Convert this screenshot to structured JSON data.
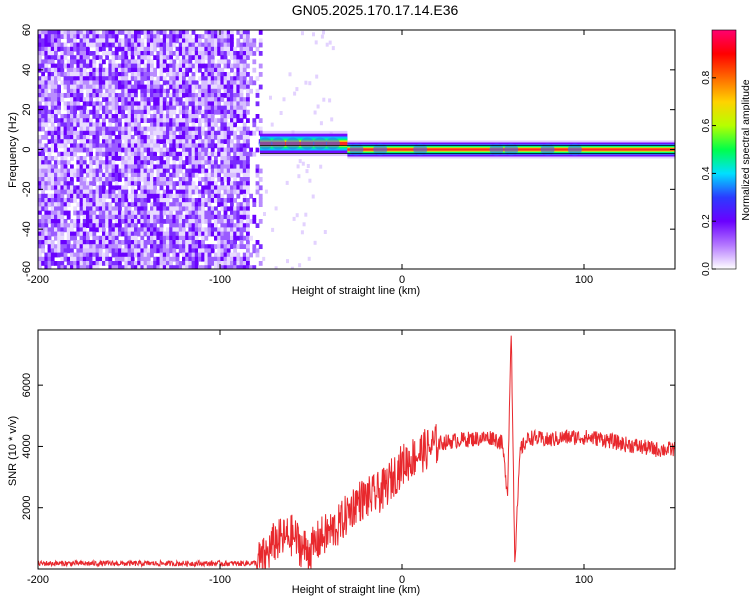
{
  "title": "GN05.2025.170.17.14.E36",
  "chart_data": [
    {
      "type": "heatmap",
      "xlabel": "Height of straight line (km)",
      "ylabel": "Frequency (Hz)",
      "xlim": [
        -200,
        150
      ],
      "ylim": [
        -60,
        60
      ],
      "x_ticks": [
        -200,
        -100,
        0,
        100
      ],
      "y_ticks": [
        -60,
        -40,
        -20,
        0,
        20,
        40,
        60
      ],
      "colorbar": {
        "label": "Normalized spectral amplitude",
        "range": [
          0,
          1
        ],
        "ticks": [
          0.0,
          0.2,
          0.4,
          0.6,
          0.8
        ],
        "colors": [
          "#ffffff",
          "#b478ff",
          "#6a00ff",
          "#2b3bff",
          "#00e0ff",
          "#00ff4a",
          "#b6ff00",
          "#ffd200",
          "#ff6a00",
          "#ff0000",
          "#ff0070"
        ]
      },
      "noise_region_x": [
        -200,
        -78
      ],
      "signal_band": {
        "x_start": -78,
        "frequency_hz": 0,
        "halfwidth_hz": 2
      },
      "signal_segments": [
        {
          "x": [
            -78,
            -30
          ],
          "frequency_hz": 3
        },
        {
          "x": [
            -30,
            150
          ],
          "frequency_hz": 0
        }
      ]
    },
    {
      "type": "line",
      "xlabel": "Height of straight line (km)",
      "ylabel": "SNR (10 * v/v)",
      "xlim": [
        -200,
        150
      ],
      "ylim": [
        0,
        7800
      ],
      "x_ticks": [
        -200,
        -100,
        0,
        100
      ],
      "y_ticks": [
        2000,
        4000,
        6000
      ],
      "line_color": "#e8282d",
      "series": [
        {
          "x": [
            -200,
            -180,
            -160,
            -140,
            -120,
            -100,
            -90,
            -80,
            -75,
            -70,
            -65,
            -60,
            -55,
            -50,
            -45,
            -40,
            -35,
            -30,
            -25,
            -20,
            -15,
            -10,
            -5,
            0,
            10,
            20,
            30,
            40,
            50,
            55,
            58,
            60,
            62,
            65,
            70,
            80,
            90,
            100,
            110,
            120,
            130,
            140,
            150
          ],
          "y": [
            180,
            180,
            180,
            180,
            180,
            180,
            180,
            200,
            400,
            900,
            1000,
            1100,
            700,
            600,
            1000,
            1200,
            1400,
            1800,
            2200,
            2300,
            2400,
            2600,
            3000,
            3400,
            3800,
            4100,
            4200,
            4250,
            4300,
            4100,
            2500,
            7800,
            300,
            3900,
            4300,
            4200,
            4300,
            4300,
            4250,
            4100,
            4000,
            3900,
            3900
          ]
        }
      ]
    }
  ]
}
